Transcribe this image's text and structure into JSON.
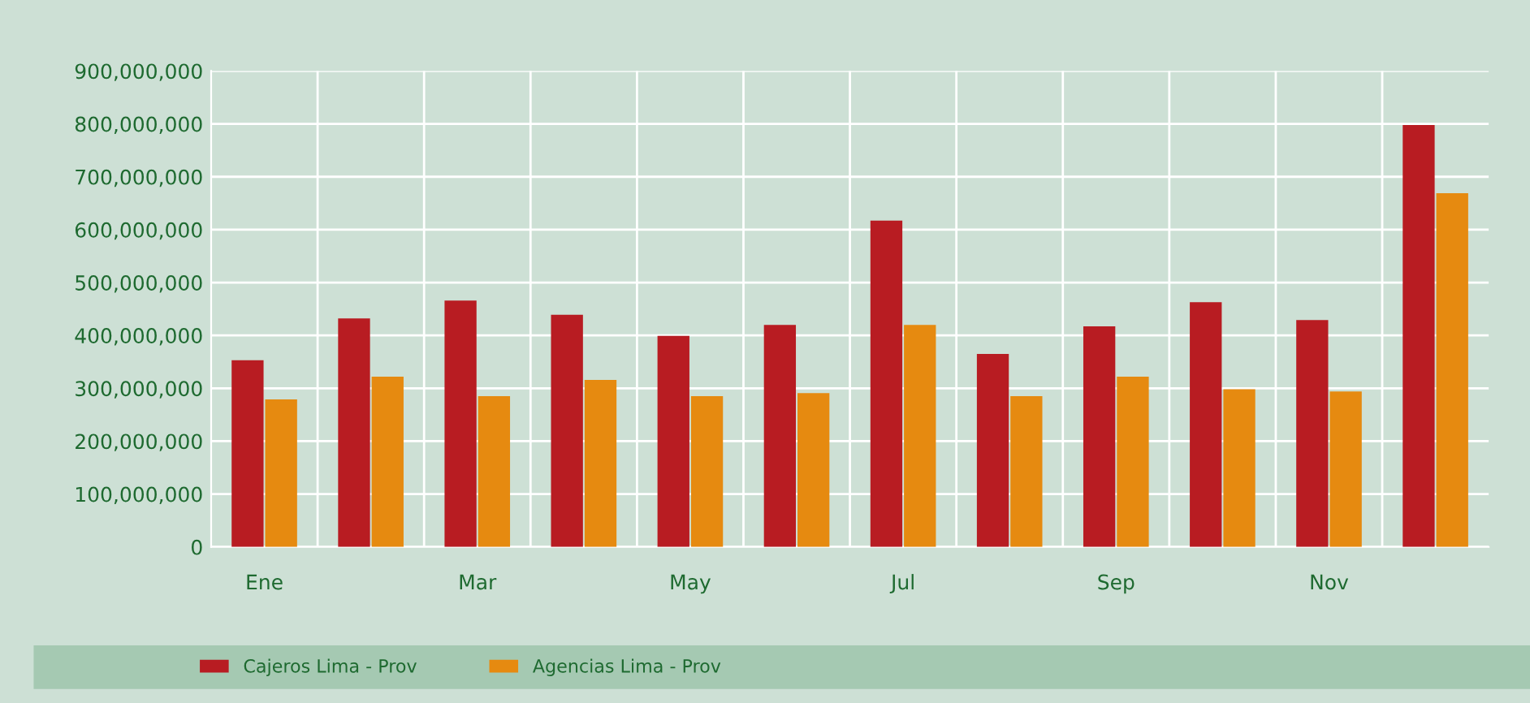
{
  "chart_data": {
    "type": "bar",
    "categories": [
      "Ene",
      null,
      "Mar",
      null,
      "May",
      null,
      "Jul",
      null,
      "Sep",
      null,
      "Nov",
      null
    ],
    "series": [
      {
        "name": "Cajeros Lima - Prov",
        "color": "#b81c22",
        "values": [
          353000000,
          432000000,
          466000000,
          439000000,
          399000000,
          420000000,
          617000000,
          365000000,
          417000000,
          463000000,
          429000000,
          798000000
        ]
      },
      {
        "name": "Agencias Lima - Prov",
        "color": "#e68a10",
        "values": [
          279000000,
          322000000,
          285000000,
          316000000,
          285000000,
          291000000,
          420000000,
          285000000,
          322000000,
          298000000,
          294000000,
          669000000
        ]
      }
    ],
    "ylim": [
      0,
      900000000
    ],
    "yticks": [
      {
        "value": 0,
        "label": "0"
      },
      {
        "value": 100000000,
        "label": "100,000,000"
      },
      {
        "value": 200000000,
        "label": "200,000,000"
      },
      {
        "value": 300000000,
        "label": "300,000,000"
      },
      {
        "value": 400000000,
        "label": "400,000,000"
      },
      {
        "value": 500000000,
        "label": "500,000,000"
      },
      {
        "value": 600000000,
        "label": "600,000,000"
      },
      {
        "value": 700000000,
        "label": "700,000,000"
      },
      {
        "value": 800000000,
        "label": "800,000,000"
      },
      {
        "value": 900000000,
        "label": "900,000,000"
      }
    ],
    "grid": true,
    "legend": "bottom"
  }
}
